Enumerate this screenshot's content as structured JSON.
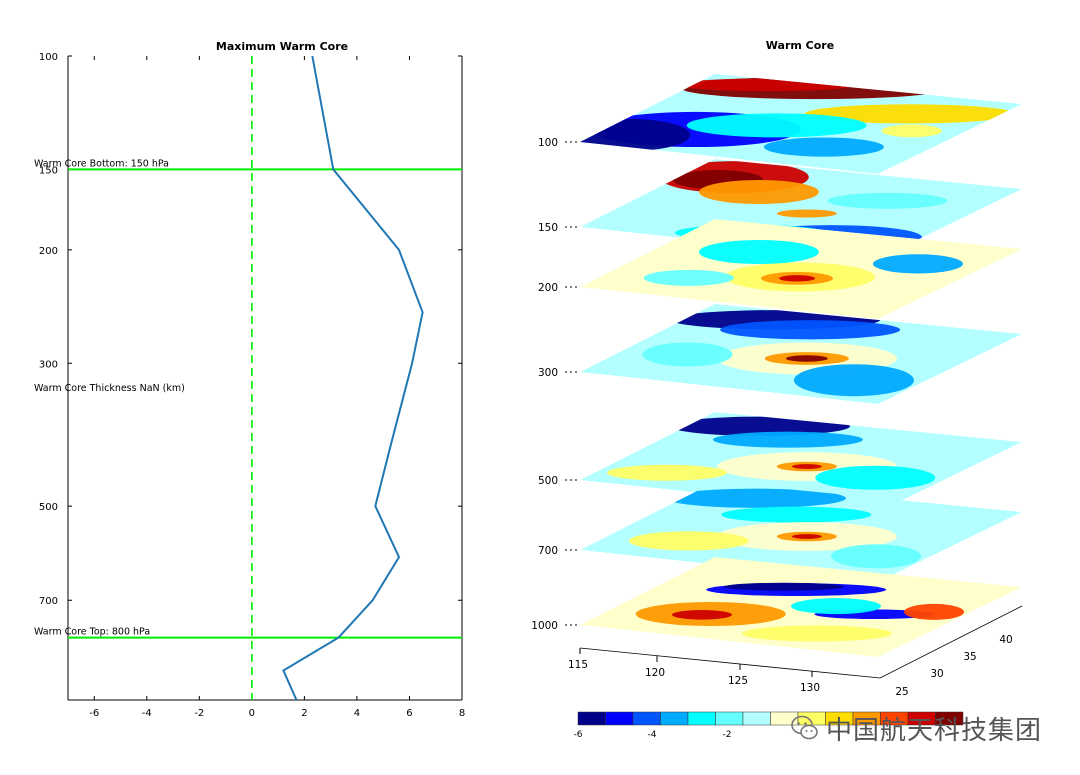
{
  "chart_data": [
    {
      "type": "line",
      "title": "Maximum Warm Core",
      "xlabel": "",
      "ylabel": "",
      "xlim": [
        -7,
        8
      ],
      "ylim": [
        100,
        1000
      ],
      "y_reversed": true,
      "y_scale": "log",
      "xticks": [
        -6,
        -4,
        -2,
        0,
        2,
        4,
        6,
        8
      ],
      "yticks": [
        100,
        150,
        200,
        300,
        500,
        700
      ],
      "series": [
        {
          "color": "#1f77b4",
          "points": [
            [
              2.3,
              100
            ],
            [
              3.1,
              150
            ],
            [
              5.6,
              200
            ],
            [
              6.5,
              250
            ],
            [
              6.1,
              300
            ],
            [
              5.3,
              400
            ],
            [
              4.7,
              500
            ],
            [
              5.6,
              600
            ],
            [
              4.6,
              700
            ],
            [
              3.3,
              800
            ],
            [
              1.2,
              900
            ],
            [
              1.7,
              1000
            ]
          ]
        }
      ],
      "reference_lines": [
        {
          "axis": "x",
          "value": 0,
          "style": "dashed",
          "color": "#00ee00"
        },
        {
          "axis": "y",
          "value": 150,
          "style": "solid",
          "color": "#00ee00"
        },
        {
          "axis": "y",
          "value": 800,
          "style": "solid",
          "color": "#00ee00"
        }
      ],
      "annotations": [
        {
          "text": "Warm Core Bottom: 150 hPa",
          "at_pressure": 150
        },
        {
          "text": "Warm Core Thickness NaN (km)",
          "at_pressure": 335
        },
        {
          "text": "Warm Core Top: 800 hPa",
          "at_pressure": 800
        }
      ]
    },
    {
      "type": "heatmap",
      "title": "Warm Core",
      "projection": "3d-stacked-layers",
      "layers": [
        {
          "level": "100",
          "label": "100"
        },
        {
          "level": "150",
          "label": "150"
        },
        {
          "level": "200",
          "label": "200"
        },
        {
          "level": "300",
          "label": "300"
        },
        {
          "level": "500",
          "label": "500"
        },
        {
          "level": "700",
          "label": "700"
        },
        {
          "level": "1000",
          "label": "1000"
        }
      ],
      "x_axis_ticks": [
        "115",
        "120",
        "125",
        "130"
      ],
      "y_axis_ticks": [
        "25",
        "30",
        "35",
        "40"
      ],
      "colorbar": {
        "ticks": [
          "-6",
          "-4",
          "-2"
        ],
        "colors": [
          "#00008b",
          "#0000ff",
          "#0055ff",
          "#00aaff",
          "#00ffff",
          "#66ffff",
          "#b3ffff",
          "#ffffcc",
          "#ffff66",
          "#ffdd00",
          "#ff9900",
          "#ff4400",
          "#cc0000",
          "#800000"
        ]
      }
    }
  ],
  "watermark": {
    "text": "中国航天科技集团",
    "icon": "wechat-icon"
  }
}
